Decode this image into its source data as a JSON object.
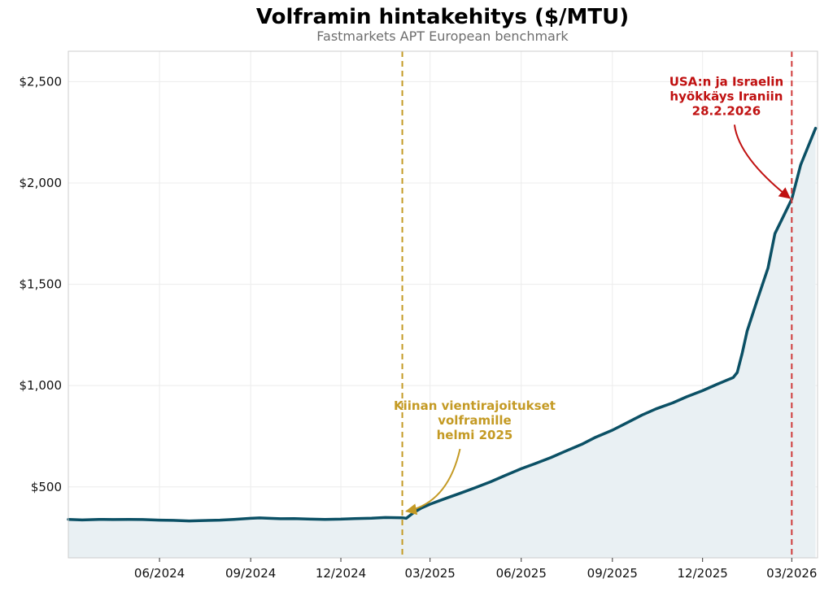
{
  "chart_data": {
    "type": "area",
    "title": "Volframin hintakehitys ($/MTU)",
    "subtitle": "Fastmarkets APT European benchmark",
    "ylim": [
      150,
      2650
    ],
    "xlim": [
      "2024-03-01",
      "2026-03-27"
    ],
    "y_ticks": [
      {
        "value": 500,
        "label": "$500"
      },
      {
        "value": 1000,
        "label": "$1,000"
      },
      {
        "value": 1500,
        "label": "$1,500"
      },
      {
        "value": 2000,
        "label": "$2,000"
      },
      {
        "value": 2500,
        "label": "$2,500"
      }
    ],
    "x_ticks": [
      {
        "date": "2024-06-01",
        "label": "06/2024"
      },
      {
        "date": "2024-09-01",
        "label": "09/2024"
      },
      {
        "date": "2024-12-01",
        "label": "12/2024"
      },
      {
        "date": "2025-03-01",
        "label": "03/2025"
      },
      {
        "date": "2025-06-01",
        "label": "06/2025"
      },
      {
        "date": "2025-09-01",
        "label": "09/2025"
      },
      {
        "date": "2025-12-01",
        "label": "12/2025"
      },
      {
        "date": "2026-03-01",
        "label": "03/2026"
      }
    ],
    "grid": true,
    "line_color": "#0b5065",
    "fill_color": "#e9f0f3",
    "series": [
      {
        "points": [
          [
            "2024-03-01",
            340
          ],
          [
            "2024-03-15",
            337
          ],
          [
            "2024-04-01",
            340
          ],
          [
            "2024-04-15",
            339
          ],
          [
            "2024-05-01",
            340
          ],
          [
            "2024-05-15",
            339
          ],
          [
            "2024-06-01",
            336
          ],
          [
            "2024-06-15",
            335
          ],
          [
            "2024-07-01",
            332
          ],
          [
            "2024-07-15",
            334
          ],
          [
            "2024-08-01",
            336
          ],
          [
            "2024-08-15",
            340
          ],
          [
            "2024-09-01",
            345
          ],
          [
            "2024-09-10",
            347
          ],
          [
            "2024-09-20",
            345
          ],
          [
            "2024-10-01",
            343
          ],
          [
            "2024-10-15",
            344
          ],
          [
            "2024-11-01",
            341
          ],
          [
            "2024-11-15",
            340
          ],
          [
            "2024-12-01",
            341
          ],
          [
            "2024-12-15",
            344
          ],
          [
            "2025-01-01",
            346
          ],
          [
            "2025-01-15",
            349
          ],
          [
            "2025-02-01",
            348
          ],
          [
            "2025-02-05",
            345
          ],
          [
            "2025-02-12",
            372
          ],
          [
            "2025-02-20",
            395
          ],
          [
            "2025-03-01",
            415
          ],
          [
            "2025-03-15",
            440
          ],
          [
            "2025-04-01",
            470
          ],
          [
            "2025-04-15",
            495
          ],
          [
            "2025-05-01",
            525
          ],
          [
            "2025-05-15",
            555
          ],
          [
            "2025-06-01",
            590
          ],
          [
            "2025-06-15",
            615
          ],
          [
            "2025-07-01",
            645
          ],
          [
            "2025-07-15",
            675
          ],
          [
            "2025-08-01",
            710
          ],
          [
            "2025-08-15",
            745
          ],
          [
            "2025-09-01",
            780
          ],
          [
            "2025-09-15",
            815
          ],
          [
            "2025-10-01",
            855
          ],
          [
            "2025-10-15",
            885
          ],
          [
            "2025-11-01",
            915
          ],
          [
            "2025-11-15",
            945
          ],
          [
            "2025-12-01",
            975
          ],
          [
            "2025-12-15",
            1005
          ],
          [
            "2026-01-01",
            1040
          ],
          [
            "2026-01-05",
            1065
          ],
          [
            "2026-01-10",
            1160
          ],
          [
            "2026-01-15",
            1270
          ],
          [
            "2026-01-25",
            1420
          ],
          [
            "2026-02-05",
            1580
          ],
          [
            "2026-02-12",
            1750
          ],
          [
            "2026-02-20",
            1830
          ],
          [
            "2026-03-01",
            1920
          ],
          [
            "2026-03-10",
            2090
          ],
          [
            "2026-03-20",
            2210
          ],
          [
            "2026-03-25",
            2270
          ]
        ]
      }
    ],
    "annotations": [
      {
        "date": "2025-02-01",
        "color": "#c49a24",
        "text_lines": [
          "Kiinan vientirajoitukset",
          "volframille",
          "helmi 2025"
        ],
        "text_anchor": {
          "date": "2025-04-15",
          "value": 880
        },
        "arrow_to": {
          "date": "2025-02-05",
          "value": 380
        }
      },
      {
        "date": "2026-03-01",
        "color": "#d03b3b",
        "text_color": "#c01010",
        "text_lines": [
          "USA:n ja Israelin",
          "hyökkäys Iraniin",
          "28.2.2026"
        ],
        "text_anchor": {
          "date": "2025-12-25",
          "value": 2480
        },
        "arrow_to": {
          "date": "2026-02-27",
          "value": 1925
        }
      }
    ]
  }
}
